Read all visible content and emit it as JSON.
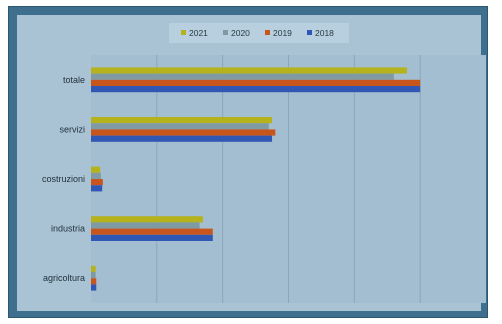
{
  "chart_data": {
    "type": "bar",
    "orientation": "horizontal",
    "categories": [
      "totale",
      "servizi",
      "costruzioni",
      "industria",
      "agricoltura"
    ],
    "series": [
      {
        "name": "2021",
        "color": "#b5b21c",
        "values": [
          4.8,
          2.75,
          0.14,
          1.7,
          0.07
        ]
      },
      {
        "name": "2020",
        "color": "#7f9aa2",
        "values": [
          4.6,
          2.7,
          0.15,
          1.65,
          0.07
        ]
      },
      {
        "name": "2019",
        "color": "#c8561c",
        "values": [
          5.0,
          2.8,
          0.18,
          1.85,
          0.08
        ]
      },
      {
        "name": "2018",
        "color": "#3157b5",
        "values": [
          5.0,
          2.75,
          0.17,
          1.85,
          0.08
        ]
      }
    ],
    "xlim": [
      0,
      6
    ],
    "grid": true,
    "legend_position": "top-center",
    "title": "",
    "xlabel": "",
    "ylabel": "",
    "colors": {
      "frame": "#3f6f8f",
      "plot_area": "#a9c3d4",
      "gridline": "#8aa6b8"
    }
  }
}
